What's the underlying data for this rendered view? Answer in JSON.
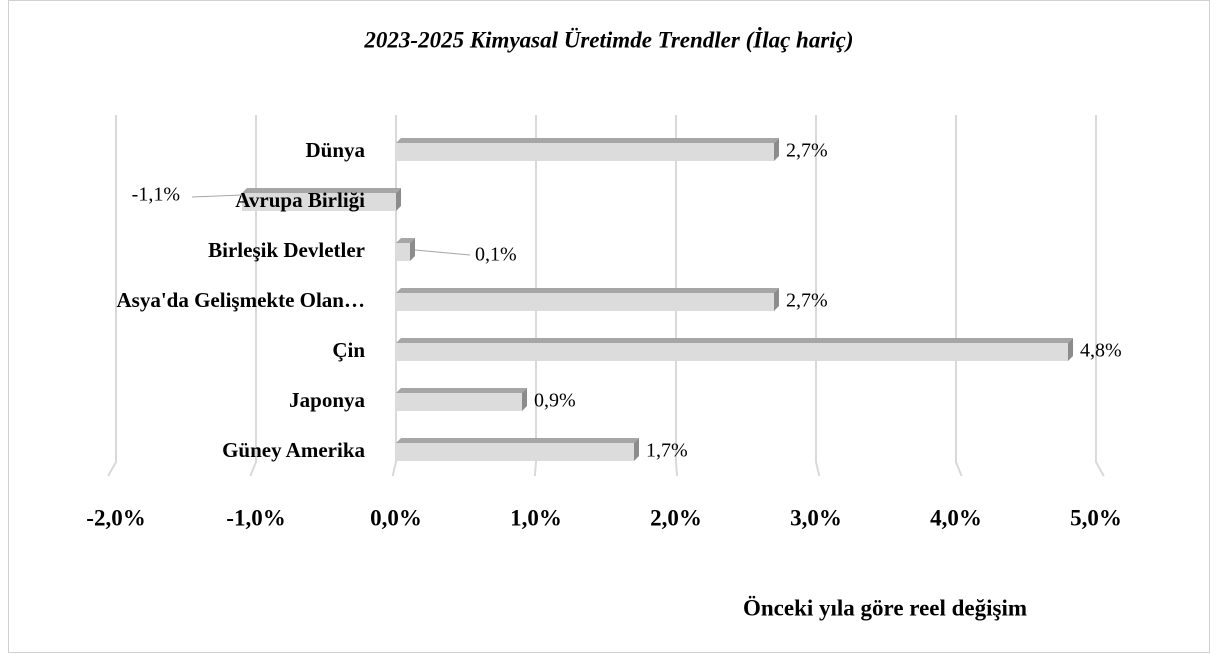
{
  "chart_data": {
    "type": "bar",
    "orientation": "horizontal",
    "title": "2023-2025 Kimyasal Üretimde Trendler (İlaç hariç)",
    "categories": [
      "Dünya",
      "Avrupa Birliği",
      "Birleşik Devletler",
      "Asya'da Gelişmekte Olan…",
      "Çin",
      "Japonya",
      "Güney Amerika"
    ],
    "values": [
      2.7,
      -1.1,
      0.1,
      2.7,
      4.8,
      0.9,
      1.7
    ],
    "value_labels": [
      "2,7%",
      "-1,1%",
      "0,1%",
      "2,7%",
      "4,8%",
      "0,9%",
      "1,7%"
    ],
    "color": "#dcdcdc",
    "negative_label_color": "#c00000",
    "xlim": [
      -2,
      5
    ],
    "xticks": [
      {
        "value": -2,
        "label": "-2,0%"
      },
      {
        "value": -1,
        "label": "-1,0%"
      },
      {
        "value": 0,
        "label": "0,0%"
      },
      {
        "value": 1,
        "label": "1,0%"
      },
      {
        "value": 2,
        "label": "2,0%"
      },
      {
        "value": 3,
        "label": "3,0%"
      },
      {
        "value": 4,
        "label": "4,0%"
      },
      {
        "value": 5,
        "label": "5,0%"
      }
    ],
    "xlabel": "Önceki yıla göre reel değişim",
    "grid": true
  }
}
